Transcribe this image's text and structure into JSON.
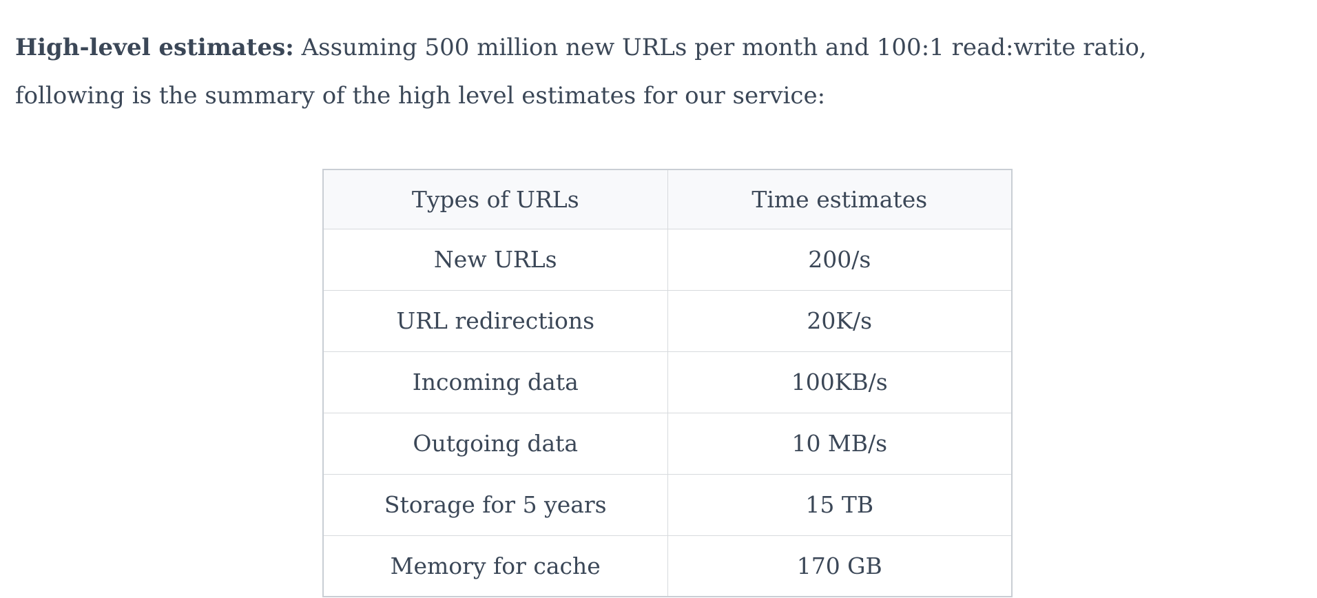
{
  "paragraph": {
    "bold_label": "High-level estimates:",
    "line1_rest": " Assuming 500 million new URLs per month and 100:1 read:write ratio, ",
    "line2": "following is the summary of the high level estimates for our service:"
  },
  "table": {
    "headers": [
      "Types of URLs",
      "Time estimates"
    ],
    "rows": [
      [
        "New URLs",
        "200/s"
      ],
      [
        "URL redirections",
        "20K/s"
      ],
      [
        "Incoming data",
        "100KB/s"
      ],
      [
        "Outgoing data",
        "10 MB/s"
      ],
      [
        "Storage for 5 years",
        "15 TB"
      ],
      [
        "Memory for cache",
        "170 GB"
      ]
    ]
  },
  "colors": {
    "text": "#3b4757",
    "table_header_background": "#f8f9fb",
    "table_border": "#d7dadd"
  }
}
